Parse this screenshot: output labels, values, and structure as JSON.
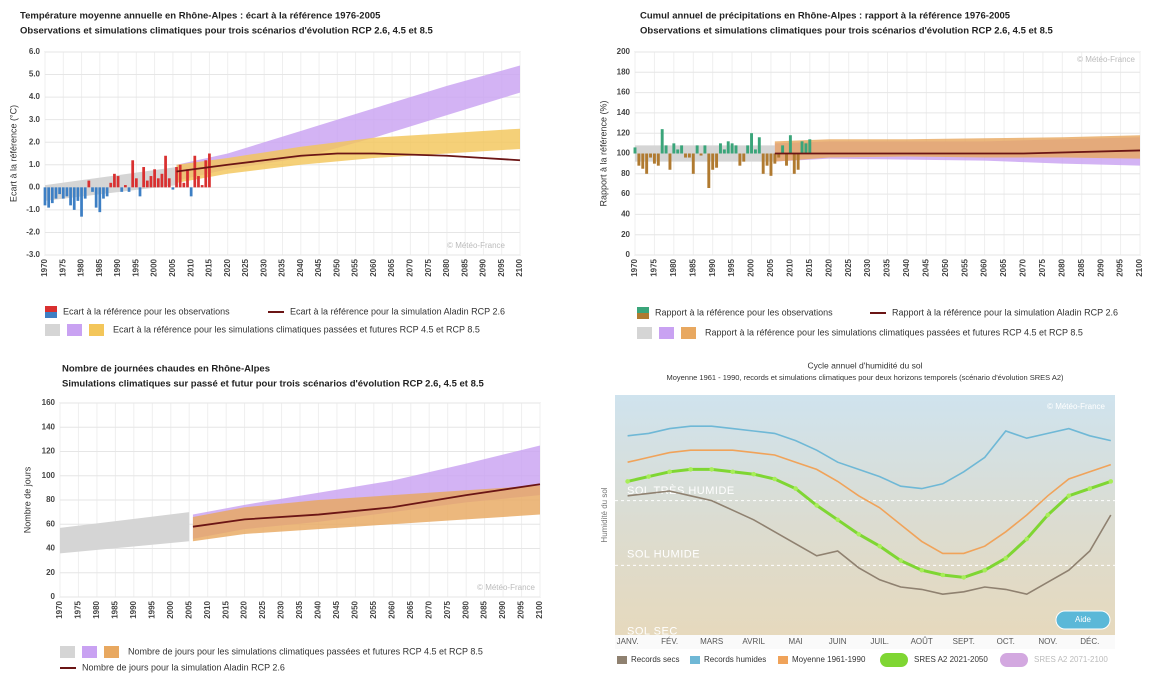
{
  "chart_data": [
    {
      "type": "combo",
      "title": "Température moyenne annuelle en Rhône-Alpes : écart à la référence 1976-2005",
      "subtitle": "Observations et simulations climatiques pour trois scénarios d'évolution RCP 2.6, 4.5 et 8.5",
      "ylabel": "Ecart à la référence (°C)",
      "watermark": "© Météo-France",
      "grid": true,
      "xlim": [
        1970,
        2100
      ],
      "xticks": [
        1970,
        1975,
        1980,
        1985,
        1990,
        1995,
        2000,
        2005,
        2010,
        2015,
        2020,
        2025,
        2030,
        2035,
        2040,
        2045,
        2050,
        2055,
        2060,
        2065,
        2070,
        2075,
        2080,
        2085,
        2090,
        2095,
        2100
      ],
      "ylim": [
        -3,
        6
      ],
      "yticks": [
        {
          "value": -3,
          "label": "-3.0"
        },
        {
          "value": -2,
          "label": "-2.0"
        },
        {
          "value": -1,
          "label": "-1.0"
        },
        {
          "value": 0,
          "label": "0.0"
        },
        {
          "value": 1,
          "label": "1.0"
        },
        {
          "value": 2,
          "label": "2.0"
        },
        {
          "value": 3,
          "label": "3.0"
        },
        {
          "value": 4,
          "label": "4.0"
        },
        {
          "value": 5,
          "label": "5.0"
        },
        {
          "value": 6,
          "label": "6.0"
        }
      ],
      "bands": [
        {
          "color": "#d5d5d5",
          "x": [
            1970,
            2006
          ],
          "lower": [
            -0.6,
            0.1
          ],
          "upper": [
            0.1,
            0.9
          ]
        },
        {
          "color": "#c9a2f2",
          "x": [
            2006,
            2020,
            2040,
            2060,
            2080,
            2100
          ],
          "lower": [
            0.3,
            0.8,
            1.3,
            2.2,
            3.2,
            4.2
          ],
          "upper": [
            1.0,
            1.5,
            2.5,
            3.5,
            4.5,
            5.4
          ]
        },
        {
          "color": "#f3c65a",
          "x": [
            2006,
            2020,
            2040,
            2060,
            2080,
            2100
          ],
          "lower": [
            0.2,
            0.6,
            1.0,
            1.3,
            1.5,
            1.7
          ],
          "upper": [
            1.0,
            1.3,
            1.8,
            2.2,
            2.4,
            2.6
          ]
        }
      ],
      "band_legend": "Ecart à la référence pour les simulations climatiques passées et futures RCP 4.5 et RCP 8.5",
      "bars": {
        "name": "Ecart à la référence pour les observations",
        "color": "#d93030",
        "negative_color": "#3d7fc4",
        "baseline": 0,
        "x": [
          1970,
          1971,
          1972,
          1973,
          1974,
          1975,
          1976,
          1977,
          1978,
          1979,
          1980,
          1981,
          1982,
          1983,
          1984,
          1985,
          1986,
          1987,
          1988,
          1989,
          1990,
          1991,
          1992,
          1993,
          1994,
          1995,
          1996,
          1997,
          1998,
          1999,
          2000,
          2001,
          2002,
          2003,
          2004,
          2005,
          2006,
          2007,
          2008,
          2009,
          2010,
          2011,
          2012,
          2013,
          2014,
          2015
        ],
        "values": [
          -0.8,
          -0.9,
          -0.7,
          -0.5,
          -0.3,
          -0.5,
          -0.4,
          -0.8,
          -1.0,
          -0.6,
          -1.3,
          -0.5,
          0.3,
          -0.2,
          -0.9,
          -1.1,
          -0.5,
          -0.4,
          0.2,
          0.6,
          0.5,
          -0.2,
          0.1,
          -0.2,
          1.2,
          0.4,
          -0.4,
          0.9,
          0.3,
          0.5,
          0.8,
          0.4,
          0.6,
          1.4,
          0.4,
          -0.1,
          0.9,
          1.0,
          0.2,
          0.8,
          -0.4,
          1.4,
          0.5,
          0.1,
          1.2,
          1.5
        ]
      },
      "lines": [
        {
          "name": "Ecart à la référence pour la simulation Aladin RCP 2.6",
          "color": "#6b1515",
          "x": [
            2006,
            2020,
            2030,
            2040,
            2050,
            2060,
            2070,
            2080,
            2090,
            2100
          ],
          "values": [
            0.7,
            1.0,
            1.2,
            1.4,
            1.5,
            1.5,
            1.45,
            1.4,
            1.3,
            1.2
          ]
        }
      ]
    },
    {
      "type": "combo",
      "title": "Cumul annuel de précipitations en Rhône-Alpes : rapport à la référence 1976-2005",
      "subtitle": "Observations et simulations climatiques pour trois scénarios d'évolution RCP 2.6, 4.5 et 8.5",
      "ylabel": "Rapport à la référence (%)",
      "watermark": "© Météo-France",
      "grid": true,
      "xlim": [
        1970,
        2100
      ],
      "xticks": [
        1970,
        1975,
        1980,
        1985,
        1990,
        1995,
        2000,
        2005,
        2010,
        2015,
        2020,
        2025,
        2030,
        2035,
        2040,
        2045,
        2050,
        2055,
        2060,
        2065,
        2070,
        2075,
        2080,
        2085,
        2090,
        2095,
        2100
      ],
      "ylim": [
        0,
        200
      ],
      "yticks": [
        0,
        20,
        40,
        60,
        80,
        100,
        120,
        140,
        160,
        180,
        200
      ],
      "bands": [
        {
          "color": "#d5d5d5",
          "x": [
            1970,
            2006
          ],
          "lower": [
            92,
            92
          ],
          "upper": [
            108,
            108
          ]
        },
        {
          "color": "#c9a2f2",
          "x": [
            2006,
            2020,
            2040,
            2060,
            2080,
            2100
          ],
          "lower": [
            92,
            95,
            94,
            93,
            90,
            88
          ],
          "upper": [
            110,
            112,
            112,
            112,
            114,
            116
          ]
        },
        {
          "color": "#e8a860",
          "x": [
            2006,
            2020,
            2040,
            2060,
            2080,
            2100
          ],
          "lower": [
            92,
            96,
            97,
            96,
            96,
            95
          ],
          "upper": [
            112,
            114,
            114,
            115,
            116,
            118
          ]
        }
      ],
      "band_legend": "Rapport à la référence pour les simulations climatiques passées et futures RCP 4.5 et RCP 8.5",
      "bars": {
        "name": "Rapport à la référence pour les observations",
        "color": "#3aa57a",
        "negative_color": "#b07a30",
        "baseline": 100,
        "x": [
          1970,
          1971,
          1972,
          1973,
          1974,
          1975,
          1976,
          1977,
          1978,
          1979,
          1980,
          1981,
          1982,
          1983,
          1984,
          1985,
          1986,
          1987,
          1988,
          1989,
          1990,
          1991,
          1992,
          1993,
          1994,
          1995,
          1996,
          1997,
          1998,
          1999,
          2000,
          2001,
          2002,
          2003,
          2004,
          2005,
          2006,
          2007,
          2008,
          2009,
          2010,
          2011,
          2012,
          2013,
          2014,
          2015
        ],
        "values": [
          106,
          88,
          85,
          80,
          96,
          90,
          88,
          124,
          108,
          84,
          110,
          104,
          108,
          96,
          96,
          80,
          108,
          98,
          108,
          66,
          84,
          86,
          110,
          104,
          112,
          110,
          108,
          88,
          92,
          108,
          120,
          104,
          116,
          80,
          88,
          78,
          90,
          96,
          108,
          88,
          118,
          80,
          84,
          112,
          110,
          114
        ]
      },
      "lines": [
        {
          "name": "Rapport à la référence pour la simulation Aladin RCP 2.6",
          "color": "#6b1515",
          "x": [
            2006,
            2040,
            2070,
            2100
          ],
          "values": [
            100,
            100,
            100,
            103
          ]
        }
      ]
    },
    {
      "type": "combo",
      "title": "Nombre de journées chaudes en Rhône-Alpes",
      "subtitle": "Simulations climatiques sur passé et futur pour trois scénarios d'évolution RCP 2.6, 4.5 et 8.5",
      "ylabel": "Nombre de jours",
      "watermark": "© Météo-France",
      "grid": true,
      "xlim": [
        1970,
        2100
      ],
      "xticks": [
        1970,
        1975,
        1980,
        1985,
        1990,
        1995,
        2000,
        2005,
        2010,
        2015,
        2020,
        2025,
        2030,
        2035,
        2040,
        2045,
        2050,
        2055,
        2060,
        2065,
        2070,
        2075,
        2080,
        2085,
        2090,
        2095,
        2100
      ],
      "ylim": [
        0,
        160
      ],
      "yticks": [
        0,
        20,
        40,
        60,
        80,
        100,
        120,
        140,
        160
      ],
      "bands": [
        {
          "color": "#d5d5d5",
          "x": [
            1970,
            2005
          ],
          "lower": [
            36,
            46
          ],
          "upper": [
            57,
            70
          ]
        },
        {
          "color": "#c9a2f2",
          "x": [
            2006,
            2020,
            2040,
            2060,
            2080,
            2100
          ],
          "lower": [
            48,
            56,
            62,
            70,
            78,
            84
          ],
          "upper": [
            68,
            76,
            86,
            96,
            110,
            125
          ]
        },
        {
          "color": "#e8a860",
          "x": [
            2006,
            2020,
            2040,
            2060,
            2080,
            2100
          ],
          "lower": [
            46,
            52,
            56,
            60,
            64,
            68
          ],
          "upper": [
            66,
            74,
            80,
            84,
            88,
            92
          ]
        }
      ],
      "band_legend": "Nombre de jours pour les simulations climatiques passées et futures RCP 4.5 et RCP 8.5",
      "lines": [
        {
          "name": "Nombre de jours pour la simulation Aladin RCP 2.6",
          "color": "#6b1515",
          "x": [
            2006,
            2020,
            2040,
            2060,
            2080,
            2100
          ],
          "values": [
            58,
            64,
            68,
            74,
            84,
            93
          ]
        }
      ]
    },
    {
      "type": "line",
      "title": "Cycle annuel d'humidité du sol",
      "subtitle": "Moyenne 1961 - 1990, records et simulations climatiques pour deux horizons temporels (scénario d'évolution SRES A2)",
      "ylabel": "Humidité du sol",
      "watermark": "© Météo-France",
      "button": "Aide",
      "zones": [
        "SOL TRÈS HUMIDE",
        "SOL HUMIDE",
        "SOL SEC"
      ],
      "categories": [
        "JANV.",
        "FÉV.",
        "MARS",
        "AVRIL",
        "MAI",
        "JUIN",
        "JUIL.",
        "AOÛT",
        "SEPT.",
        "OCT.",
        "NOV.",
        "DÉC."
      ],
      "x": [
        0,
        0.5,
        1,
        1.5,
        2,
        2.5,
        3,
        3.5,
        4,
        4.5,
        5,
        5.5,
        6,
        6.5,
        7,
        7.5,
        8,
        8.5,
        9,
        9.5,
        10,
        10.5,
        11,
        11.5
      ],
      "xlim": [
        -0.3,
        11.6
      ],
      "ylim": [
        0,
        100
      ],
      "series": [
        {
          "name": "Records secs",
          "color": "#8f8170",
          "values": [
            58,
            59,
            60,
            58,
            56,
            52,
            48,
            43,
            38,
            33,
            35,
            28,
            23,
            20,
            19,
            17,
            18,
            20,
            19,
            17,
            22,
            27,
            35,
            50
          ]
        },
        {
          "name": "Records humides",
          "color": "#6fb8d6",
          "values": [
            83,
            84,
            86,
            87,
            87,
            86,
            85,
            84,
            81,
            77,
            72,
            69,
            66,
            62,
            61,
            63,
            68,
            74,
            85,
            82,
            84,
            86,
            83,
            81
          ]
        },
        {
          "name": "Moyenne 1961-1990",
          "color": "#f0a35a",
          "values": [
            72,
            74,
            76,
            77,
            77,
            77,
            76,
            75,
            72,
            69,
            64,
            58,
            53,
            46,
            39,
            34,
            34,
            37,
            43,
            50,
            58,
            65,
            68,
            71
          ]
        },
        {
          "name": "SRES A2 2021-2050",
          "color": "#7fd633",
          "markers": true,
          "values": [
            64,
            66,
            68,
            69,
            69,
            68,
            67,
            65,
            61,
            54,
            48,
            42,
            37,
            31,
            27,
            25,
            24,
            27,
            32,
            40,
            50,
            58,
            61,
            64
          ]
        }
      ],
      "hidden_series": [
        {
          "name": "SRES A2 2071-2100",
          "color": "#d3a8e0"
        }
      ]
    }
  ]
}
